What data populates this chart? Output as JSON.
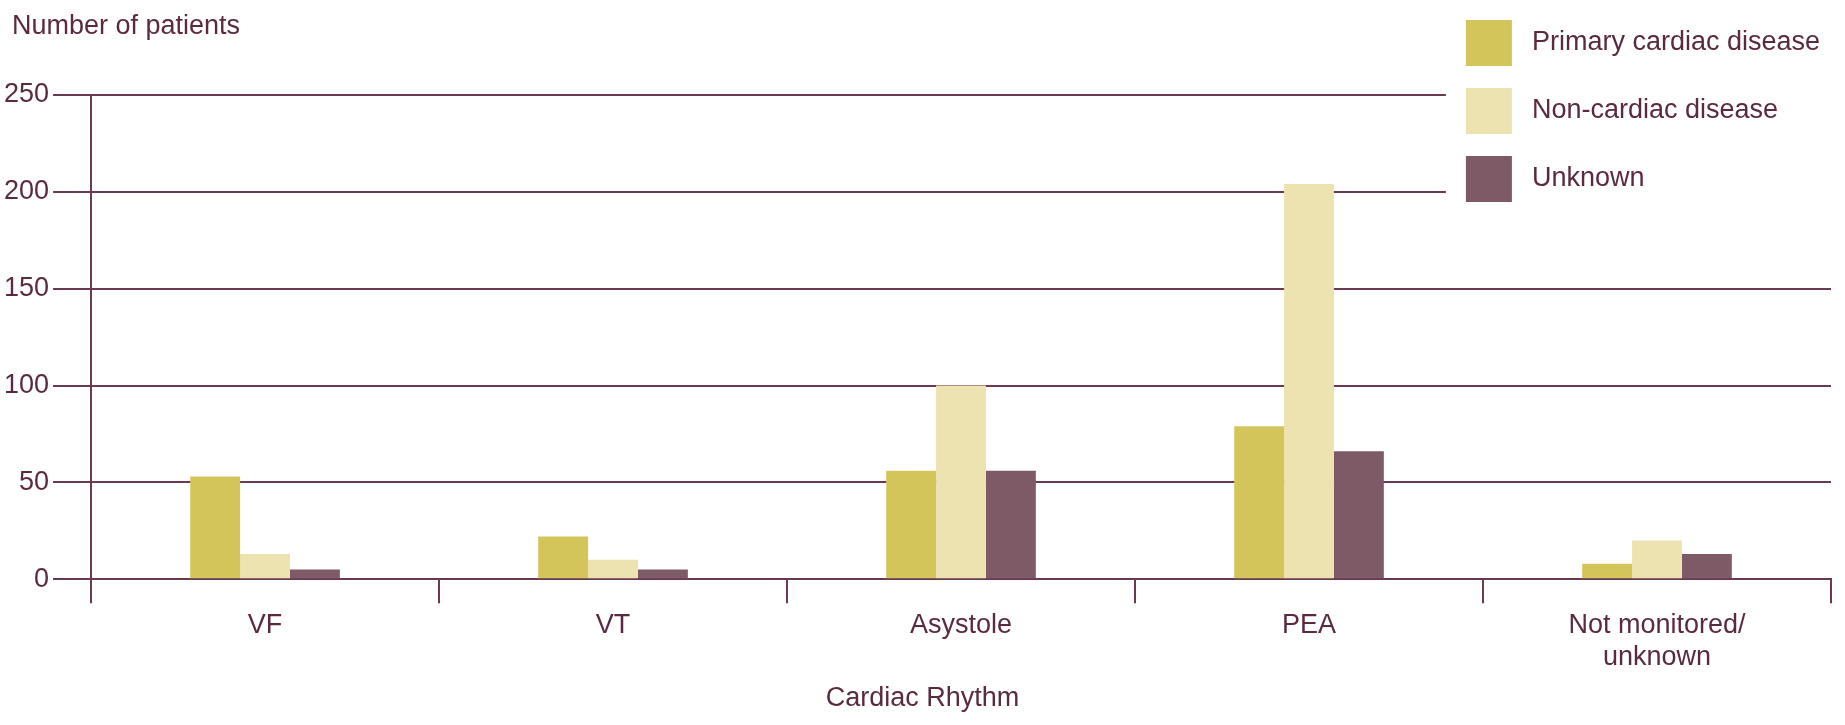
{
  "chart_data": {
    "type": "bar",
    "xlabel": "Cardiac Rhythm",
    "ylabel": "Number of patients",
    "categories": [
      "VF",
      "VT",
      "Asystole",
      "PEA",
      "Not monitored/ unknown"
    ],
    "series": [
      {
        "name": "Primary cardiac disease",
        "color": "#d4c55a",
        "values": [
          53,
          22,
          56,
          79,
          8
        ]
      },
      {
        "name": "Non-cardiac disease",
        "color": "#ede3b0",
        "values": [
          13,
          10,
          100,
          204,
          20
        ]
      },
      {
        "name": "Unknown",
        "color": "#7d5a66",
        "values": [
          5,
          5,
          56,
          66,
          13
        ]
      }
    ],
    "ylim": [
      0,
      250
    ],
    "yticks": [
      0,
      50,
      100,
      150,
      200,
      250
    ],
    "grid": "y",
    "legend": "top right"
  }
}
